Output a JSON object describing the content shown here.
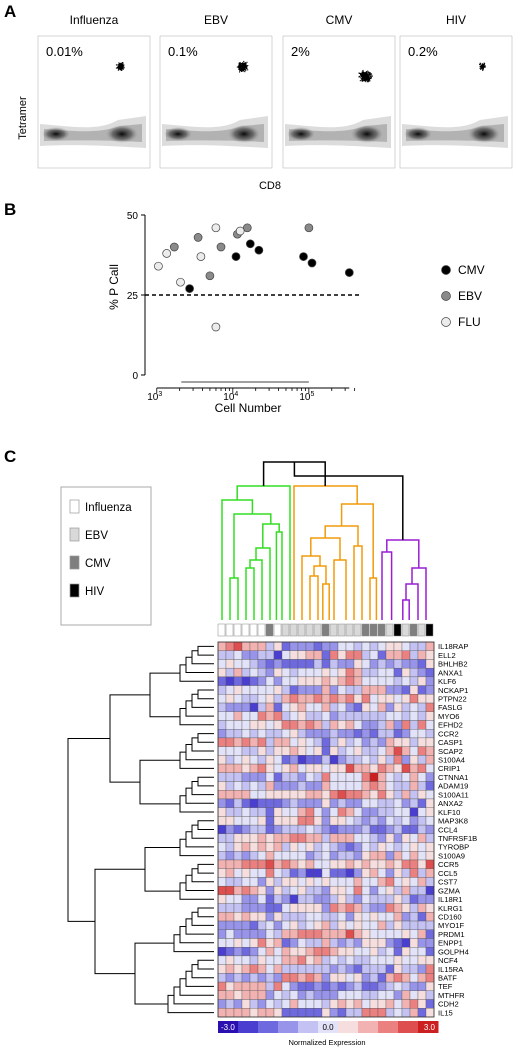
{
  "panel_labels": [
    "A",
    "B",
    "C"
  ],
  "panel_a": {
    "ylabel": "Tetramer",
    "xlabel": "CD8",
    "plots": [
      {
        "title": "Influenza",
        "percent": "0.01%",
        "spread": 0.6,
        "density": 0.45
      },
      {
        "title": "EBV",
        "percent": "0.1%",
        "spread": 0.8,
        "density": 0.75
      },
      {
        "title": "CMV",
        "percent": "2%",
        "spread": 1.0,
        "density": 1.0
      },
      {
        "title": "HIV",
        "percent": "0.2%",
        "spread": 0.5,
        "density": 0.3
      }
    ]
  },
  "chart_data": {
    "type": "scatter",
    "xlabel": "Cell Number",
    "ylabel": "% P Call",
    "x_scale": "log",
    "xlim": [
      700,
      500000
    ],
    "ylim": [
      0,
      50
    ],
    "x_ticks": [
      {
        "base": "10",
        "exp": "3"
      },
      {
        "base": "10",
        "exp": "4"
      },
      {
        "base": "10",
        "exp": "5"
      }
    ],
    "y_ticks": [
      "0",
      "25",
      "50"
    ],
    "reference_line": 25,
    "legend_position": "right",
    "series": [
      {
        "name": "CMV",
        "color": "#000000",
        "points": [
          [
            2700,
            27
          ],
          [
            11000,
            37
          ],
          [
            17000,
            41
          ],
          [
            22000,
            39
          ],
          [
            85000,
            37
          ],
          [
            110000,
            35
          ],
          [
            340000,
            32
          ]
        ]
      },
      {
        "name": "EBV",
        "color": "#8a8a8a",
        "points": [
          [
            1700,
            40
          ],
          [
            3500,
            43
          ],
          [
            5000,
            31
          ],
          [
            7000,
            40
          ],
          [
            11500,
            44
          ],
          [
            15500,
            46
          ],
          [
            100000,
            46
          ]
        ]
      },
      {
        "name": "FLU",
        "color": "#ececec",
        "points": [
          [
            1050,
            34
          ],
          [
            1350,
            38
          ],
          [
            2050,
            29
          ],
          [
            3800,
            37
          ],
          [
            6000,
            46
          ],
          [
            12500,
            45
          ],
          [
            6000,
            15
          ]
        ]
      }
    ]
  },
  "panel_c": {
    "legend": [
      {
        "label": "Influenza",
        "color": "#ffffff"
      },
      {
        "label": "EBV",
        "color": "#d9d9d9"
      },
      {
        "label": "CMV",
        "color": "#7f7f7f"
      },
      {
        "label": "HIV",
        "color": "#000000"
      }
    ],
    "colorbar": {
      "min_label": "-3.0",
      "mid_label": "0.0",
      "max_label": "3.0",
      "title": "Normalized Expression"
    },
    "cluster_colors": [
      "#33dd22",
      "#f29b0c",
      "#9b1dd6",
      "#000000"
    ],
    "sample_groups": [
      0,
      0,
      0,
      0,
      0,
      0,
      2,
      0,
      1,
      1,
      1,
      1,
      1,
      2,
      1,
      1,
      1,
      1,
      2,
      2,
      2,
      1,
      3,
      1,
      2,
      1,
      3
    ],
    "genes": [
      "IL18RAP",
      "ELL2",
      "BHLHB2",
      "ANXA1",
      "KLF6",
      "NCKAP1",
      "PTPN22",
      "FASLG",
      "MYO6",
      "EFHD2",
      "CCR2",
      "CASP1",
      "SCAP2",
      "S100A4",
      "CRIP1",
      "CTNNA1",
      "ADAM19",
      "S100A11",
      "ANXA2",
      "KLF10",
      "MAP3K8",
      "CCL4",
      "TNFRSF1B",
      "TYROBP",
      "S100A9",
      "CCR5",
      "CCL5",
      "CST7",
      "GZMA",
      "IL18R1",
      "KLRG1",
      "CD160",
      "MYO1F",
      "PRDM1",
      "ENPP1",
      "GOLPH4",
      "NCF4",
      "IL15RA",
      "BATF",
      "TEF",
      "MTHFR",
      "CDH2",
      "IL15"
    ]
  }
}
